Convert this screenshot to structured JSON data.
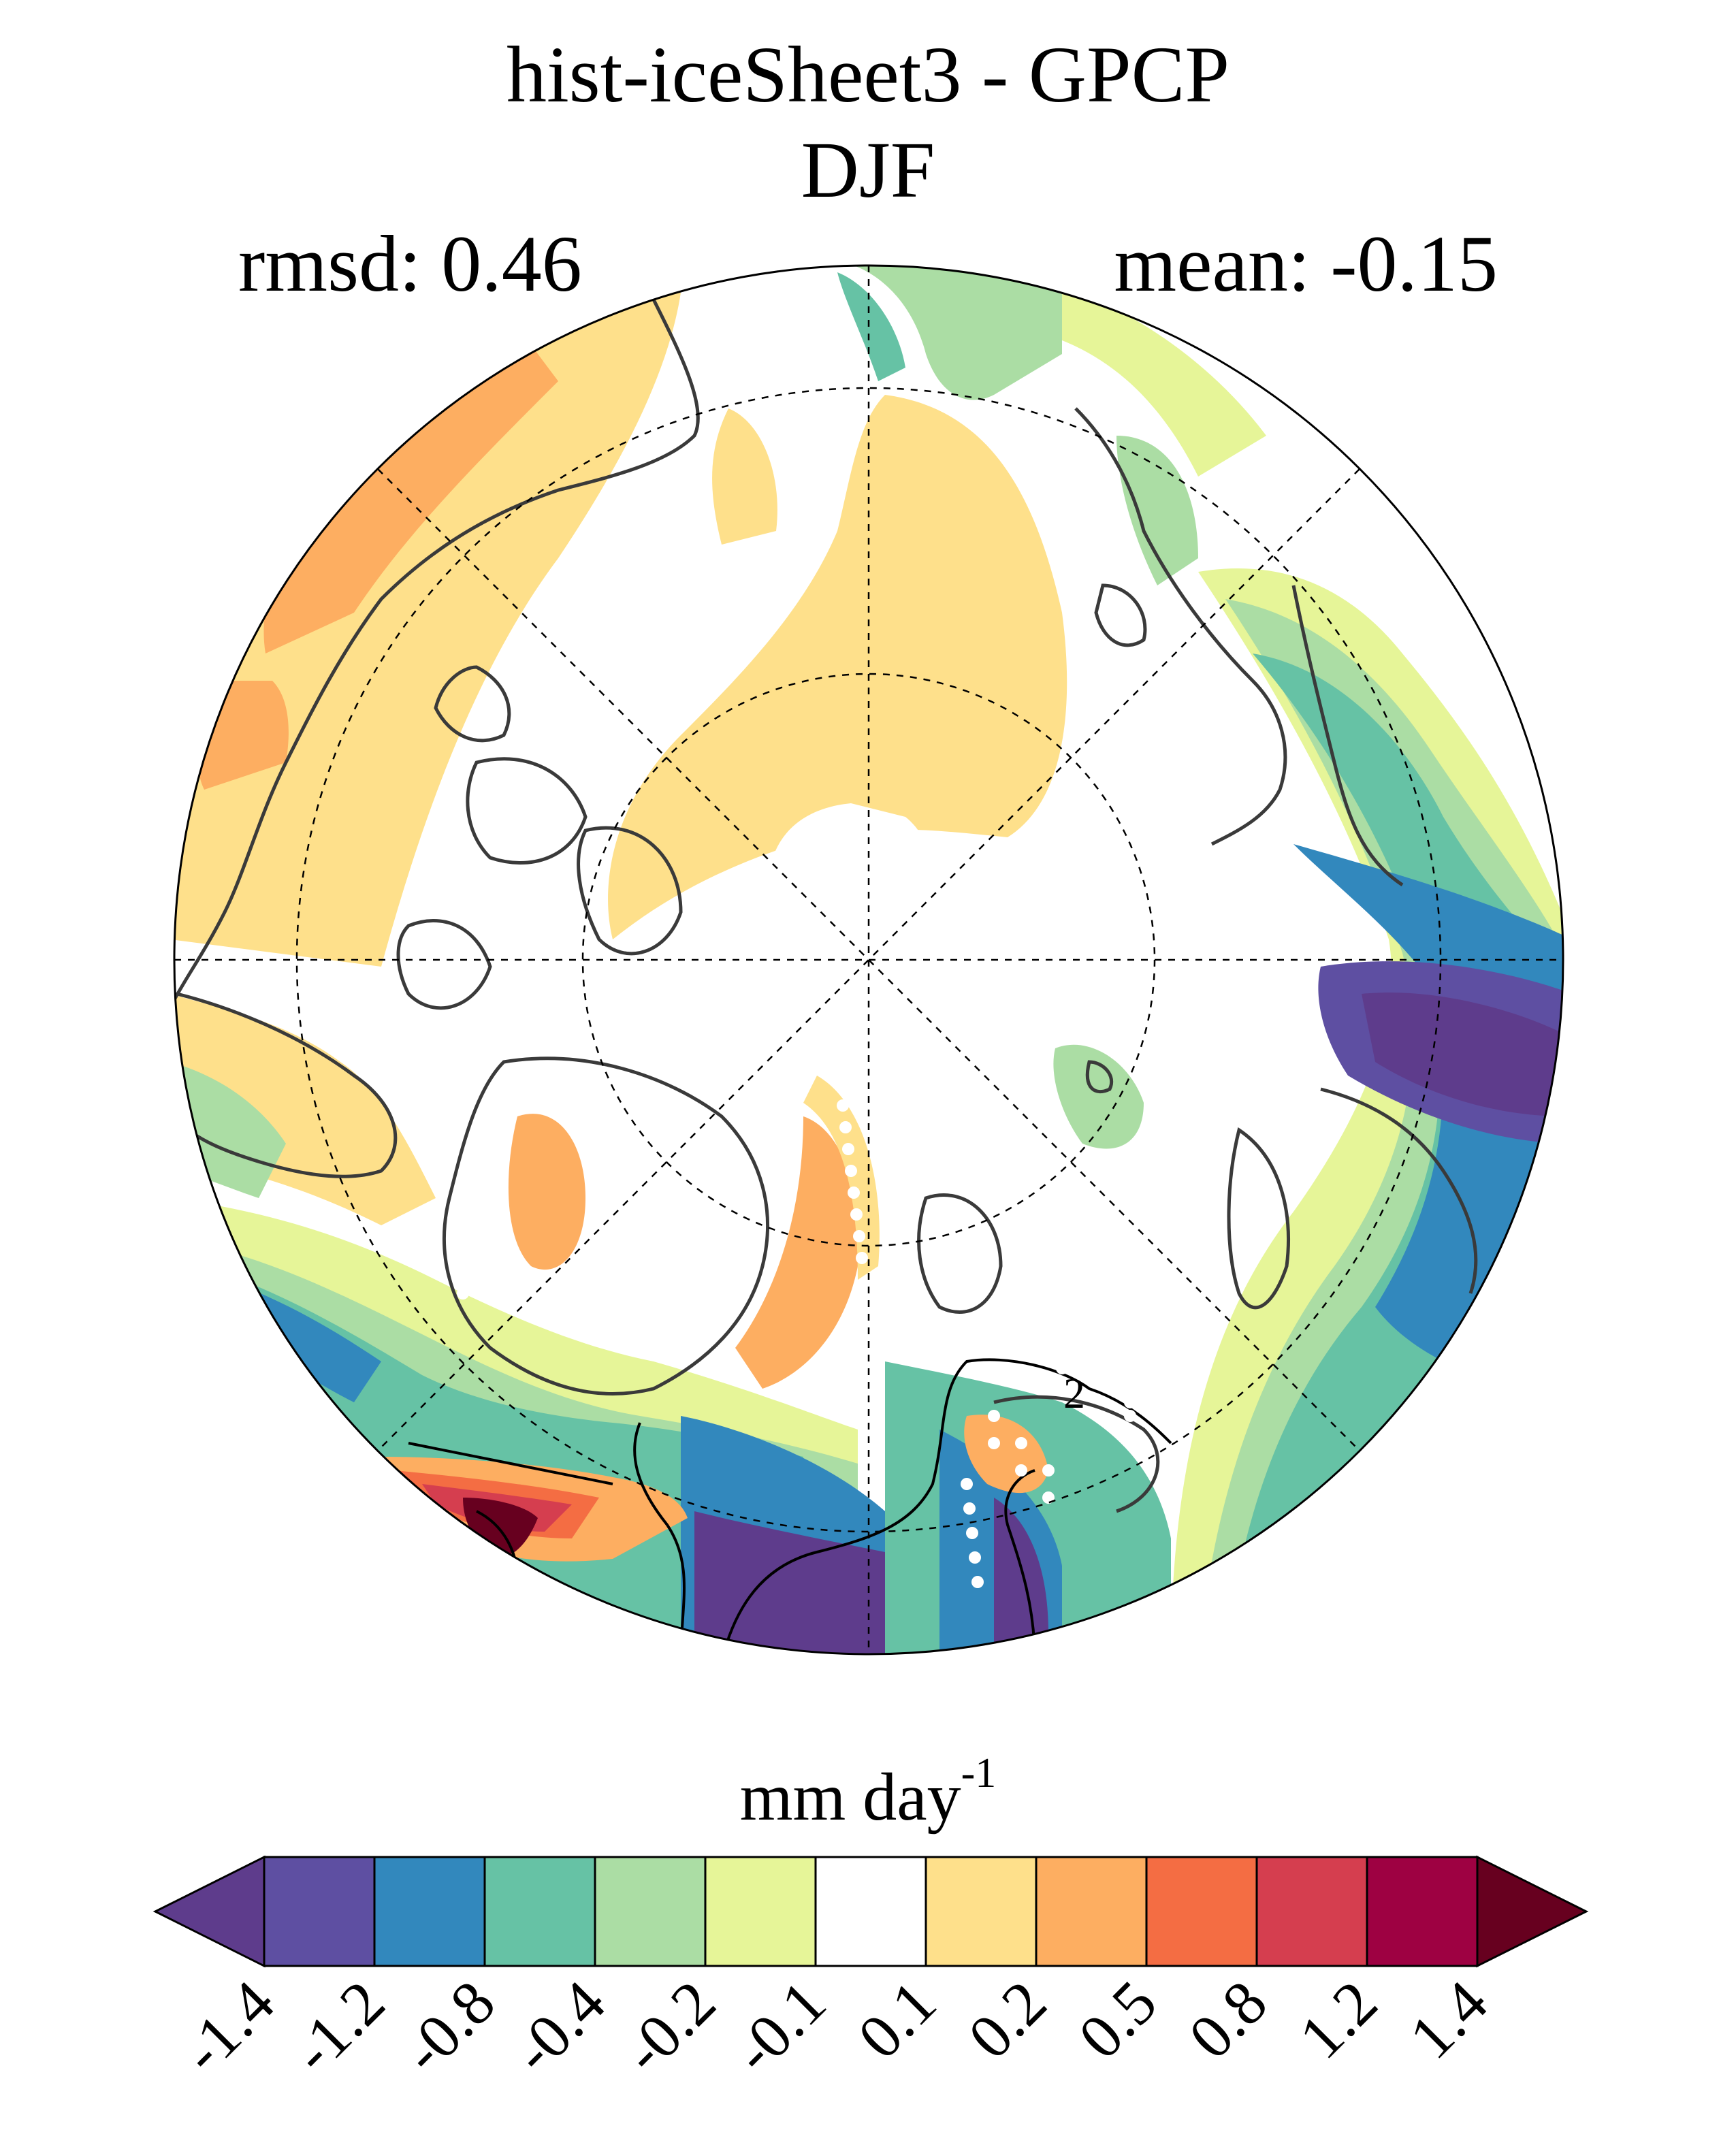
{
  "title": "hist-iceSheet3 - GPCP",
  "subtitle": "DJF",
  "rmsd_label": "rmsd: 0.46",
  "mean_label": "mean: -0.15",
  "colorbar": {
    "units": "mm day",
    "units_exponent": "-1",
    "tick_labels": [
      "-1.4",
      "-1.2",
      "-0.8",
      "-0.4",
      "-0.2",
      "-0.1",
      "0.1",
      "0.2",
      "0.5",
      "0.8",
      "1.2",
      "1.4"
    ],
    "colors": [
      "#5e3c8c",
      "#5e4fa2",
      "#3288bd",
      "#66c2a5",
      "#abdda4",
      "#e6f598",
      "#ffffff",
      "#fee08b",
      "#fdae61",
      "#f46d43",
      "#d53e4f",
      "#9e0142",
      "#67001f"
    ]
  },
  "map": {
    "projection": "north-polar-stereographic",
    "contour_label": "2"
  }
}
